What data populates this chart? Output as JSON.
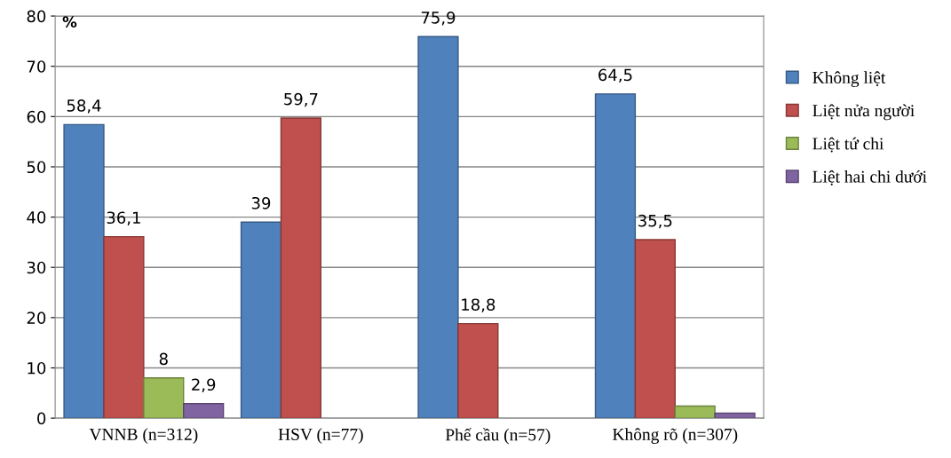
{
  "chart_data": {
    "type": "bar",
    "ylabel": "%",
    "categories": [
      "VNNB (n=312)",
      "HSV (n=77)",
      "Phế cầu (n=57)",
      "Không rõ (n=307)"
    ],
    "series": [
      {
        "name": "Không liệt",
        "color": "#4f81bd",
        "values": [
          58.4,
          39,
          75.9,
          64.5
        ],
        "value_labels": [
          "58,4",
          "39",
          "75,9",
          "64,5"
        ]
      },
      {
        "name": "Liệt nửa người",
        "color": "#c0504d",
        "values": [
          36.1,
          59.7,
          18.8,
          35.5
        ],
        "value_labels": [
          "36,1",
          "59,7",
          "18,8",
          "35,5"
        ]
      },
      {
        "name": "Liệt tứ chi",
        "color": "#9bbb59",
        "values": [
          8,
          null,
          null,
          2.4
        ],
        "value_labels": [
          "8",
          null,
          null,
          null
        ]
      },
      {
        "name": "Liệt hai chi dưới",
        "color": "#8064a2",
        "values": [
          2.9,
          null,
          null,
          1
        ],
        "value_labels": [
          "2,9",
          null,
          null,
          null
        ]
      }
    ],
    "ylim": [
      0,
      80
    ],
    "yticks": [
      0,
      10,
      20,
      30,
      40,
      50,
      60,
      70,
      80
    ],
    "grid": "y",
    "legend": "right"
  }
}
